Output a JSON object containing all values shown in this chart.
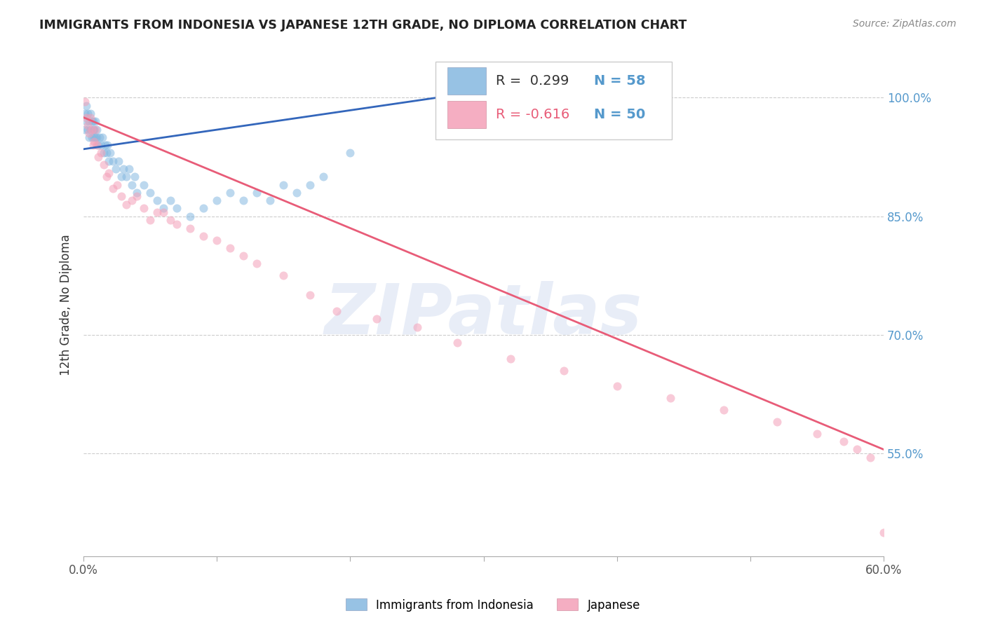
{
  "title": "IMMIGRANTS FROM INDONESIA VS JAPANESE 12TH GRADE, NO DIPLOMA CORRELATION CHART",
  "source": "Source: ZipAtlas.com",
  "ylabel": "12th Grade, No Diploma",
  "legend_entries": [
    {
      "label": "Immigrants from Indonesia",
      "color": "#a8c4e0",
      "R": 0.299,
      "N": 58
    },
    {
      "label": "Japanese",
      "color": "#f4a7b9",
      "R": -0.616,
      "N": 50
    }
  ],
  "blue_scatter_x": [
    0.001,
    0.001,
    0.002,
    0.002,
    0.003,
    0.003,
    0.004,
    0.004,
    0.005,
    0.005,
    0.006,
    0.006,
    0.007,
    0.007,
    0.008,
    0.008,
    0.009,
    0.009,
    0.01,
    0.01,
    0.011,
    0.012,
    0.013,
    0.014,
    0.015,
    0.016,
    0.017,
    0.018,
    0.019,
    0.02,
    0.022,
    0.024,
    0.026,
    0.028,
    0.03,
    0.032,
    0.034,
    0.036,
    0.038,
    0.04,
    0.045,
    0.05,
    0.055,
    0.06,
    0.065,
    0.07,
    0.08,
    0.09,
    0.1,
    0.11,
    0.12,
    0.13,
    0.14,
    0.15,
    0.16,
    0.17,
    0.18,
    0.2
  ],
  "blue_scatter_y": [
    0.96,
    0.98,
    0.97,
    0.99,
    0.96,
    0.98,
    0.95,
    0.97,
    0.96,
    0.98,
    0.95,
    0.97,
    0.96,
    0.97,
    0.95,
    0.96,
    0.95,
    0.97,
    0.95,
    0.96,
    0.94,
    0.95,
    0.94,
    0.95,
    0.93,
    0.94,
    0.93,
    0.94,
    0.92,
    0.93,
    0.92,
    0.91,
    0.92,
    0.9,
    0.91,
    0.9,
    0.91,
    0.89,
    0.9,
    0.88,
    0.89,
    0.88,
    0.87,
    0.86,
    0.87,
    0.86,
    0.85,
    0.86,
    0.87,
    0.88,
    0.87,
    0.88,
    0.87,
    0.89,
    0.88,
    0.89,
    0.9,
    0.93
  ],
  "pink_scatter_x": [
    0.001,
    0.002,
    0.003,
    0.004,
    0.005,
    0.006,
    0.007,
    0.008,
    0.009,
    0.01,
    0.011,
    0.013,
    0.015,
    0.017,
    0.019,
    0.022,
    0.025,
    0.028,
    0.032,
    0.036,
    0.04,
    0.045,
    0.05,
    0.055,
    0.06,
    0.065,
    0.07,
    0.08,
    0.09,
    0.1,
    0.11,
    0.12,
    0.13,
    0.15,
    0.17,
    0.19,
    0.22,
    0.25,
    0.28,
    0.32,
    0.36,
    0.4,
    0.44,
    0.48,
    0.52,
    0.55,
    0.57,
    0.58,
    0.59,
    0.6
  ],
  "pink_scatter_y": [
    0.995,
    0.975,
    0.965,
    0.955,
    0.975,
    0.96,
    0.94,
    0.945,
    0.96,
    0.94,
    0.925,
    0.93,
    0.915,
    0.9,
    0.905,
    0.885,
    0.89,
    0.875,
    0.865,
    0.87,
    0.875,
    0.86,
    0.845,
    0.855,
    0.855,
    0.845,
    0.84,
    0.835,
    0.825,
    0.82,
    0.81,
    0.8,
    0.79,
    0.775,
    0.75,
    0.73,
    0.72,
    0.71,
    0.69,
    0.67,
    0.655,
    0.635,
    0.62,
    0.605,
    0.59,
    0.575,
    0.565,
    0.555,
    0.545,
    0.45
  ],
  "blue_line_x": [
    0.0,
    0.285
  ],
  "blue_line_y": [
    0.935,
    1.005
  ],
  "pink_line_x": [
    0.0,
    0.6
  ],
  "pink_line_y": [
    0.975,
    0.555
  ],
  "xlim": [
    0.0,
    0.6
  ],
  "ylim": [
    0.42,
    1.055
  ],
  "ytick_vals": [
    1.0,
    0.85,
    0.7,
    0.55
  ],
  "ytick_labels": [
    "100.0%",
    "85.0%",
    "70.0%",
    "55.0%"
  ],
  "xtick_vals": [
    0.0,
    0.1,
    0.2,
    0.3,
    0.4,
    0.5,
    0.6
  ],
  "xtick_labels": [
    "0.0%",
    "",
    "",
    "",
    "",
    "",
    "60.0%"
  ],
  "background_color": "#ffffff",
  "scatter_size": 75,
  "scatter_alpha": 0.55,
  "blue_color": "#85b8e0",
  "pink_color": "#f4a0b8",
  "blue_line_color": "#3366bb",
  "pink_line_color": "#e85c78",
  "watermark_text": "ZIPatlas",
  "grid_color": "#cccccc",
  "ytick_color": "#5599cc",
  "xtick_color": "#555555"
}
